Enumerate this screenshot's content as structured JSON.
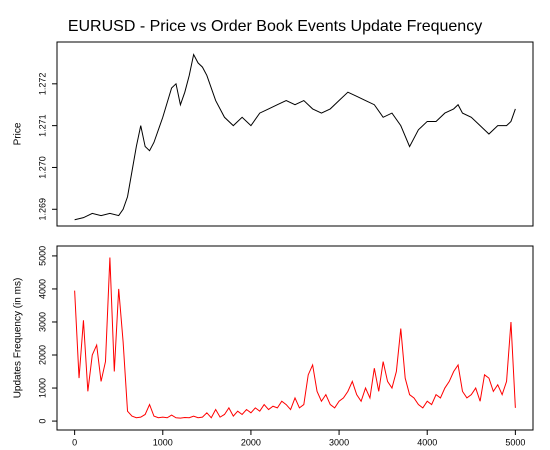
{
  "chart_data": [
    {
      "type": "line",
      "title": "EURUSD - Price vs Order Book Events Update Frequency",
      "ylabel": "Price",
      "xlim": [
        -200,
        5200
      ],
      "ylim": [
        1.2686,
        1.273
      ],
      "yticks": [
        1.269,
        {
          "value": 1.27,
          "label": "1.270"
        },
        1.271,
        1.272
      ],
      "series": [
        {
          "name": "Price",
          "color": "#000000",
          "x": [
            0,
            100,
            200,
            300,
            400,
            500,
            550,
            600,
            650,
            700,
            750,
            800,
            850,
            900,
            1000,
            1100,
            1150,
            1200,
            1250,
            1300,
            1350,
            1400,
            1450,
            1500,
            1600,
            1700,
            1800,
            1900,
            2000,
            2100,
            2200,
            2300,
            2400,
            2500,
            2600,
            2700,
            2800,
            2900,
            3000,
            3100,
            3200,
            3300,
            3400,
            3500,
            3600,
            3700,
            3800,
            3900,
            4000,
            4100,
            4200,
            4300,
            4350,
            4400,
            4500,
            4600,
            4700,
            4800,
            4900,
            4950,
            5000
          ],
          "values": [
            1.26875,
            1.2688,
            1.2689,
            1.26885,
            1.2689,
            1.26885,
            1.269,
            1.2693,
            1.2699,
            1.2705,
            1.271,
            1.2705,
            1.2704,
            1.2706,
            1.2712,
            1.2719,
            1.272,
            1.2715,
            1.2718,
            1.2722,
            1.2727,
            1.2725,
            1.2724,
            1.2722,
            1.2716,
            1.2712,
            1.271,
            1.2712,
            1.271,
            1.2713,
            1.2714,
            1.2715,
            1.2716,
            1.2715,
            1.2716,
            1.2714,
            1.2713,
            1.2714,
            1.2716,
            1.2718,
            1.2717,
            1.2716,
            1.2715,
            1.2712,
            1.2713,
            1.271,
            1.2705,
            1.2709,
            1.2711,
            1.2711,
            1.2713,
            1.2714,
            1.2715,
            1.2713,
            1.2712,
            1.271,
            1.2708,
            1.271,
            1.271,
            1.2711,
            1.2714
          ]
        }
      ]
    },
    {
      "type": "line",
      "ylabel": "Updates Frequency (in ms)",
      "xlim": [
        -200,
        5200
      ],
      "ylim": [
        -270,
        5300
      ],
      "xticks": [
        0,
        1000,
        2000,
        3000,
        4000,
        5000
      ],
      "yticks": [
        0,
        1000,
        2000,
        3000,
        4000,
        5000
      ],
      "series": [
        {
          "name": "Updates Frequency",
          "color": "#ff0000",
          "x": [
            0,
            50,
            100,
            150,
            200,
            250,
            300,
            350,
            400,
            450,
            500,
            550,
            600,
            650,
            700,
            750,
            800,
            850,
            900,
            950,
            1000,
            1050,
            1100,
            1150,
            1200,
            1250,
            1300,
            1350,
            1400,
            1450,
            1500,
            1550,
            1600,
            1650,
            1700,
            1750,
            1800,
            1850,
            1900,
            1950,
            2000,
            2050,
            2100,
            2150,
            2200,
            2250,
            2300,
            2350,
            2400,
            2450,
            2500,
            2550,
            2600,
            2650,
            2700,
            2750,
            2800,
            2850,
            2900,
            2950,
            3000,
            3050,
            3100,
            3150,
            3200,
            3250,
            3300,
            3350,
            3400,
            3450,
            3500,
            3550,
            3600,
            3650,
            3700,
            3750,
            3800,
            3850,
            3900,
            3950,
            4000,
            4050,
            4100,
            4150,
            4200,
            4250,
            4300,
            4350,
            4400,
            4450,
            4500,
            4550,
            4600,
            4650,
            4700,
            4750,
            4800,
            4850,
            4900,
            4950,
            5000
          ],
          "values": [
            3950,
            1300,
            3050,
            900,
            2000,
            2300,
            1200,
            1800,
            4950,
            1500,
            4000,
            2400,
            300,
            150,
            100,
            120,
            200,
            500,
            150,
            100,
            120,
            100,
            180,
            100,
            90,
            110,
            100,
            150,
            100,
            120,
            250,
            100,
            350,
            120,
            200,
            400,
            150,
            300,
            200,
            350,
            250,
            400,
            300,
            500,
            350,
            450,
            400,
            600,
            500,
            350,
            700,
            400,
            500,
            1400,
            1700,
            900,
            600,
            800,
            500,
            400,
            600,
            700,
            900,
            1200,
            800,
            600,
            1000,
            700,
            1600,
            900,
            1800,
            1200,
            1000,
            1500,
            2800,
            1300,
            800,
            700,
            500,
            400,
            600,
            500,
            800,
            700,
            1000,
            1200,
            1500,
            1700,
            900,
            700,
            800,
            1000,
            600,
            1400,
            1300,
            900,
            1100,
            800,
            1200,
            3000,
            400
          ]
        }
      ]
    }
  ]
}
